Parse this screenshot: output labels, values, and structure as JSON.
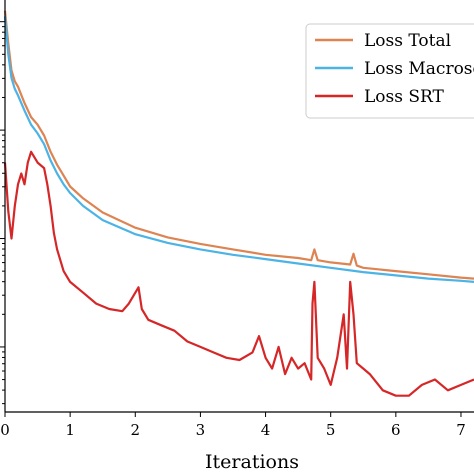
{
  "chart_data": {
    "type": "line",
    "title": "",
    "xlabel": "Iterations",
    "ylabel": "",
    "xlim": [
      0,
      7.2
    ],
    "ylim_log10": [
      -3.6,
      0.2
    ],
    "yscale": "log",
    "grid": false,
    "legend_position": "top-right",
    "x_ticks": [
      "0",
      "1",
      "2",
      "3",
      "4",
      "5",
      "6",
      "7"
    ],
    "series": [
      {
        "name": "Loss Total",
        "color": "#dd8452",
        "x": [
          0,
          0.05,
          0.1,
          0.15,
          0.2,
          0.3,
          0.4,
          0.5,
          0.6,
          0.7,
          0.8,
          0.9,
          1.0,
          1.2,
          1.5,
          2.0,
          2.5,
          3.0,
          3.5,
          4.0,
          4.5,
          4.7,
          4.75,
          4.8,
          5.0,
          5.3,
          5.35,
          5.4,
          5.5,
          6.0,
          6.5,
          7.0,
          7.2
        ],
        "log10_y": [
          0.1,
          -0.2,
          -0.45,
          -0.55,
          -0.6,
          -0.75,
          -0.88,
          -0.95,
          -1.05,
          -1.2,
          -1.32,
          -1.42,
          -1.52,
          -1.63,
          -1.76,
          -1.9,
          -1.99,
          -2.05,
          -2.1,
          -2.15,
          -2.18,
          -2.2,
          -2.1,
          -2.2,
          -2.22,
          -2.24,
          -2.14,
          -2.25,
          -2.27,
          -2.3,
          -2.33,
          -2.36,
          -2.37
        ]
      },
      {
        "name": "Loss Macroscopic",
        "color": "#4cb3e6",
        "x": [
          0,
          0.05,
          0.1,
          0.15,
          0.2,
          0.3,
          0.4,
          0.5,
          0.6,
          0.7,
          0.8,
          0.9,
          1.0,
          1.2,
          1.5,
          2.0,
          2.5,
          3.0,
          3.5,
          4.0,
          4.5,
          5.0,
          5.5,
          6.0,
          6.5,
          7.0,
          7.2
        ],
        "log10_y": [
          0.05,
          -0.3,
          -0.52,
          -0.62,
          -0.68,
          -0.82,
          -0.95,
          -1.03,
          -1.13,
          -1.28,
          -1.4,
          -1.5,
          -1.58,
          -1.7,
          -1.83,
          -1.96,
          -2.04,
          -2.1,
          -2.15,
          -2.19,
          -2.23,
          -2.27,
          -2.31,
          -2.34,
          -2.37,
          -2.39,
          -2.4
        ]
      },
      {
        "name": "Loss SRT",
        "color": "#d62728",
        "x": [
          0,
          0.05,
          0.1,
          0.15,
          0.2,
          0.25,
          0.3,
          0.35,
          0.4,
          0.5,
          0.6,
          0.65,
          0.7,
          0.75,
          0.8,
          0.9,
          1.0,
          1.2,
          1.4,
          1.6,
          1.8,
          1.9,
          2.0,
          2.05,
          2.1,
          2.2,
          2.4,
          2.6,
          2.8,
          3.0,
          3.2,
          3.4,
          3.6,
          3.8,
          3.9,
          4.0,
          4.1,
          4.2,
          4.3,
          4.4,
          4.5,
          4.6,
          4.7,
          4.72,
          4.75,
          4.8,
          4.9,
          5.0,
          5.1,
          5.2,
          5.25,
          5.3,
          5.35,
          5.4,
          5.5,
          5.6,
          5.8,
          6.0,
          6.2,
          6.4,
          6.6,
          6.8,
          7.0,
          7.2
        ],
        "log10_y": [
          -1.3,
          -1.75,
          -2.0,
          -1.7,
          -1.5,
          -1.4,
          -1.5,
          -1.3,
          -1.2,
          -1.3,
          -1.35,
          -1.5,
          -1.7,
          -1.95,
          -2.1,
          -2.3,
          -2.4,
          -2.5,
          -2.6,
          -2.65,
          -2.67,
          -2.6,
          -2.5,
          -2.45,
          -2.65,
          -2.75,
          -2.8,
          -2.85,
          -2.95,
          -3.0,
          -3.05,
          -3.1,
          -3.12,
          -3.05,
          -2.9,
          -3.1,
          -3.2,
          -3.0,
          -3.25,
          -3.1,
          -3.2,
          -3.15,
          -3.3,
          -2.6,
          -2.4,
          -3.1,
          -3.2,
          -3.35,
          -3.1,
          -2.7,
          -3.2,
          -2.4,
          -2.7,
          -3.15,
          -3.2,
          -3.25,
          -3.4,
          -3.45,
          -3.45,
          -3.35,
          -3.3,
          -3.4,
          -3.35,
          -3.3
        ]
      }
    ]
  }
}
